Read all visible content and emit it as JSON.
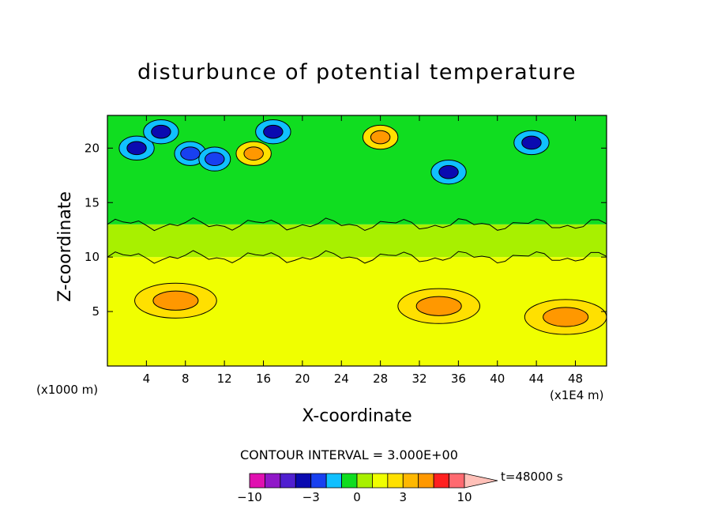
{
  "chart_data": {
    "type": "heatmap",
    "title": "disturbunce of potential temperature",
    "xlabel": "X-coordinate",
    "ylabel": "Z-coordinate",
    "x_scale_label": "(x1E4 m)",
    "y_scale_label": "(x1000 m)",
    "xlim": [
      0,
      51.2
    ],
    "ylim": [
      0,
      23
    ],
    "x_ticks": [
      "4",
      "8",
      "12",
      "16",
      "20",
      "24",
      "28",
      "32",
      "36",
      "40",
      "44",
      "48"
    ],
    "x_tick_values": [
      4,
      8,
      12,
      16,
      20,
      24,
      28,
      32,
      36,
      40,
      44,
      48
    ],
    "y_ticks": [
      "5",
      "10",
      "15",
      "20"
    ],
    "y_tick_values": [
      5,
      10,
      15,
      20
    ],
    "contour_interval": "CONTOUR INTERVAL = 3.000E+00",
    "time_label": "t=48000 s",
    "colorbar": {
      "levels": [
        -10,
        -8,
        -6,
        -4,
        -3,
        -2,
        -1,
        0,
        1,
        2,
        3,
        4,
        6,
        8,
        10
      ],
      "tick_labels": [
        "−10",
        "−3",
        "0",
        "3",
        "10"
      ],
      "tick_values": [
        -10,
        -3,
        0,
        3,
        10
      ],
      "colors": [
        "#e010b0",
        "#9018c8",
        "#5020d0",
        "#0a0ab0",
        "#1840f0",
        "#10c0ff",
        "#10dd20",
        "#a8f000",
        "#f0ff00",
        "#ffe000",
        "#ffb800",
        "#ff9800",
        "#ff2020",
        "#ff6a70",
        "#ffc0b8"
      ]
    },
    "grid": false,
    "features": [
      {
        "x": 3,
        "z": 20,
        "value": -4
      },
      {
        "x": 5.5,
        "z": 21.5,
        "value": -4
      },
      {
        "x": 8.5,
        "z": 19.5,
        "value": -3
      },
      {
        "x": 11,
        "z": 19,
        "value": -3
      },
      {
        "x": 17,
        "z": 21.5,
        "value": -4
      },
      {
        "x": 15,
        "z": 19.5,
        "value": 4
      },
      {
        "x": 28,
        "z": 21,
        "value": 4
      },
      {
        "x": 35,
        "z": 17.8,
        "value": -4
      },
      {
        "x": 43.5,
        "z": 20.5,
        "value": -4
      },
      {
        "x": 7,
        "z": 6,
        "value": 4
      },
      {
        "x": 34,
        "z": 5.5,
        "value": 4
      },
      {
        "x": 47,
        "z": 4.5,
        "value": 4
      }
    ]
  }
}
